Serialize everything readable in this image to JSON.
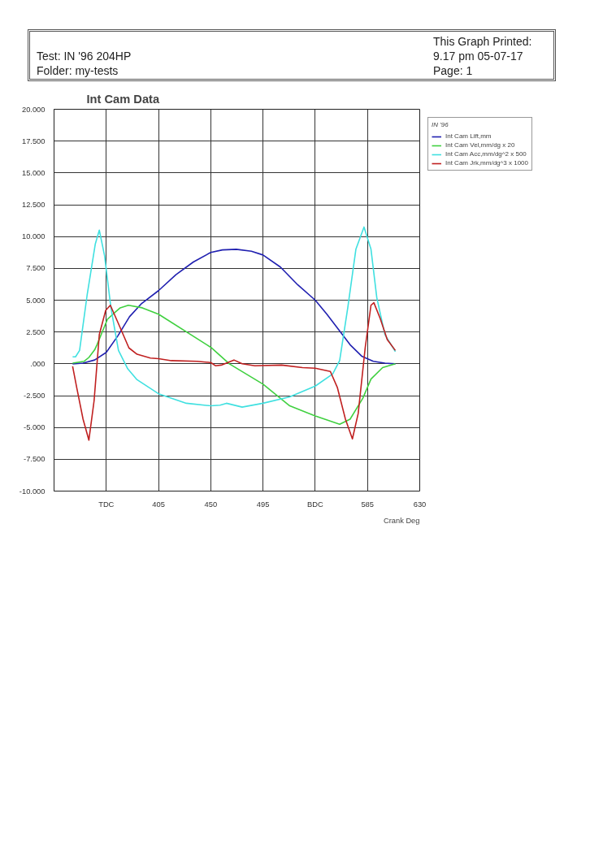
{
  "chart_data": {
    "type": "line",
    "title": "Int Cam Data",
    "xlabel": "Crank Deg",
    "legend_title": "IN '96",
    "annotations": [
      "Test: IN '96 204HP",
      "Folder: my-tests",
      "This Graph Printed:",
      "9.17 pm 05-07-17",
      "Page:  1"
    ],
    "xlim": [
      315,
      630
    ],
    "xticks": [
      {
        "value": 360,
        "label": "TDC"
      },
      405,
      450,
      495,
      {
        "value": 540,
        "label": "BDC"
      },
      585,
      630
    ],
    "ylim": [
      -10,
      20
    ],
    "yticks": [
      {
        "value": -10,
        "label": "-10.000"
      },
      {
        "value": -7.5,
        "label": "-7.500"
      },
      {
        "value": -5,
        "label": "-5.000"
      },
      {
        "value": -2.5,
        "label": "-2.500"
      },
      {
        "value": 0,
        "label": ".000"
      },
      {
        "value": 2.5,
        "label": "2.500"
      },
      {
        "value": 5,
        "label": "5.000"
      },
      {
        "value": 7.5,
        "label": "7.500"
      },
      {
        "value": 10,
        "label": "10.000"
      },
      {
        "value": 12.5,
        "label": "12.500"
      },
      {
        "value": 15,
        "label": "15.000"
      },
      {
        "value": 17.5,
        "label": "17.500"
      },
      {
        "value": 20,
        "label": "20.000"
      }
    ],
    "grid": true,
    "legend": "top right",
    "marker": "none",
    "line_style": "solid",
    "series": [
      {
        "name": "Int Cam Lift,mm",
        "color": "#2020b0",
        "x": [
          331,
          340,
          350,
          360,
          370,
          380,
          390,
          405,
          420,
          435,
          450,
          460,
          472,
          485,
          495,
          510,
          525,
          540,
          550,
          560,
          570,
          580,
          590,
          600,
          609
        ],
        "values": [
          0,
          0.05,
          0.3,
          0.9,
          2.2,
          3.7,
          4.7,
          5.75,
          7.0,
          8.0,
          8.75,
          8.95,
          9.0,
          8.85,
          8.55,
          7.6,
          6.2,
          5.0,
          3.9,
          2.7,
          1.5,
          0.6,
          0.2,
          0.05,
          0
        ]
      },
      {
        "name": "Int Cam Vel,mm/dg x 20",
        "color": "#40d040",
        "x": [
          331,
          341,
          345,
          350,
          352,
          361,
          367,
          372,
          379,
          391,
          405,
          450,
          466,
          495,
          518,
          540,
          561,
          570,
          581,
          588,
          598,
          609
        ],
        "values": [
          0.05,
          0.2,
          0.5,
          1.1,
          1.5,
          3.5,
          4.0,
          4.4,
          4.6,
          4.4,
          3.9,
          1.3,
          0,
          -1.6,
          -3.3,
          -4.1,
          -4.75,
          -4.35,
          -2.7,
          -1.2,
          -0.3,
          0
        ]
      },
      {
        "name": "Int Cam Acc,mm/dg^2 x 500",
        "color": "#40e0e0",
        "x": [
          331,
          333.5,
          337,
          343.5,
          350.5,
          354,
          358.5,
          364,
          370.5,
          378.5,
          386.5,
          405,
          429,
          450,
          458,
          463.5,
          477,
          495,
          518,
          540,
          555,
          561,
          568,
          575,
          582,
          588,
          593,
          600,
          609
        ],
        "values": [
          0.55,
          0.55,
          1.05,
          5.4,
          9.4,
          10.5,
          8.5,
          4.4,
          1.05,
          -0.4,
          -1.25,
          -2.35,
          -3.1,
          -3.3,
          -3.25,
          -3.1,
          -3.4,
          -3.1,
          -2.6,
          -1.75,
          -0.8,
          0.25,
          4.4,
          9.0,
          10.75,
          9.0,
          5.2,
          2.3,
          0.95
        ]
      },
      {
        "name": "Int Cam Jrk,mm/dg^3 x 1000",
        "color": "#c02020",
        "x": [
          331,
          334.5,
          340,
          345,
          349.5,
          354,
          359.5,
          363.5,
          370.5,
          379.5,
          386.5,
          398,
          405,
          416,
          438,
          450,
          454,
          459,
          470,
          477,
          488,
          511,
          529,
          540,
          553,
          559,
          566,
          572,
          577,
          583,
          588,
          590.5,
          596,
          602,
          609
        ],
        "values": [
          -0.2,
          -1.85,
          -4.35,
          -6.0,
          -2.9,
          2.3,
          4.2,
          4.6,
          3.15,
          1.25,
          0.75,
          0.45,
          0.4,
          0.25,
          0.2,
          0.1,
          -0.15,
          -0.1,
          0.3,
          0,
          -0.15,
          -0.1,
          -0.3,
          -0.35,
          -0.6,
          -1.85,
          -4.35,
          -5.9,
          -3.9,
          1.25,
          4.6,
          4.8,
          3.55,
          1.9,
          1.05
        ]
      }
    ]
  }
}
